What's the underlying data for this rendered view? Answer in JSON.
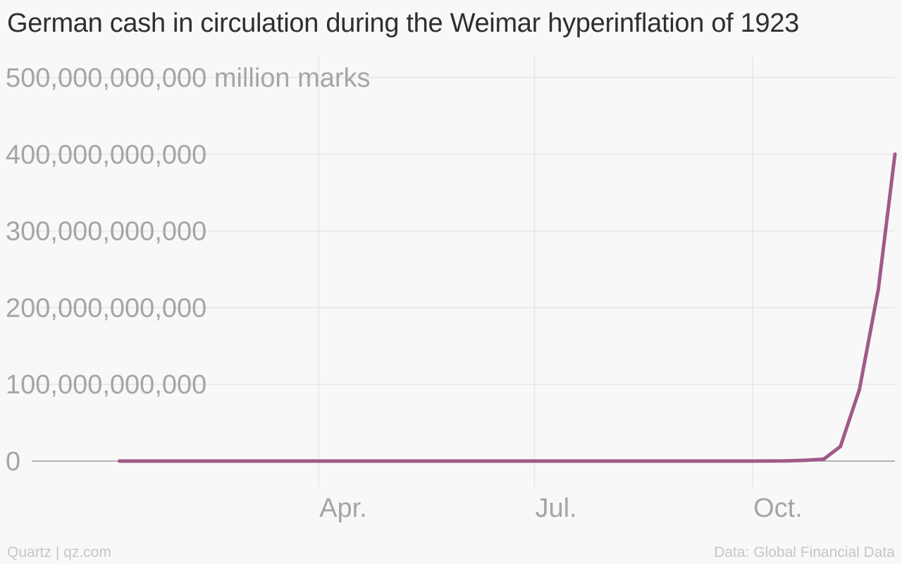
{
  "title": "German cash in circulation during the Weimar hyperinflation of 1923",
  "footer": {
    "credit": "Quartz | qz.com",
    "source": "Data: Global Financial Data"
  },
  "colors": {
    "line": "#a15a8a",
    "grid": "#e6e6e6",
    "axis": "#9a9a9a",
    "tick_text": "#a5a5a5"
  },
  "chart_data": {
    "type": "line",
    "title": "German cash in circulation during the Weimar hyperinflation of 1923",
    "ylabel": "million marks",
    "ylim": [
      0,
      500000000000
    ],
    "xlim": [
      "1922-12-01",
      "1923-11-30"
    ],
    "y_ticks": [
      {
        "value": 0,
        "label": "0"
      },
      {
        "value": 100000000000,
        "label": "100,000,000,000"
      },
      {
        "value": 200000000000,
        "label": "200,000,000,000"
      },
      {
        "value": 300000000000,
        "label": "300,000,000,000"
      },
      {
        "value": 400000000000,
        "label": "400,000,000,000"
      },
      {
        "value": 500000000000,
        "label": "500,000,000,000",
        "suffix": "million marks"
      }
    ],
    "x_ticks": [
      {
        "date": "1923-04-01",
        "label": "Apr."
      },
      {
        "date": "1923-07-01",
        "label": "Jul."
      },
      {
        "date": "1923-10-01",
        "label": "Oct."
      }
    ],
    "grid": true,
    "series": [
      {
        "points": [
          {
            "x": "1923-01-07",
            "y": 0
          },
          {
            "x": "1923-01-31",
            "y": 0
          },
          {
            "x": "1923-02-28",
            "y": 0
          },
          {
            "x": "1923-03-31",
            "y": 0
          },
          {
            "x": "1923-04-30",
            "y": 0
          },
          {
            "x": "1923-05-31",
            "y": 0
          },
          {
            "x": "1923-06-30",
            "y": 0
          },
          {
            "x": "1923-07-31",
            "y": 0
          },
          {
            "x": "1923-08-31",
            "y": 0
          },
          {
            "x": "1923-09-30",
            "y": 0
          },
          {
            "x": "1923-10-15",
            "y": 200000000
          },
          {
            "x": "1923-10-23",
            "y": 1000000000
          },
          {
            "x": "1923-10-31",
            "y": 2500000000
          },
          {
            "x": "1923-11-07",
            "y": 19000000000
          },
          {
            "x": "1923-11-15",
            "y": 93000000000
          },
          {
            "x": "1923-11-23",
            "y": 224000000000
          },
          {
            "x": "1923-11-30",
            "y": 400000000000
          }
        ]
      }
    ]
  }
}
